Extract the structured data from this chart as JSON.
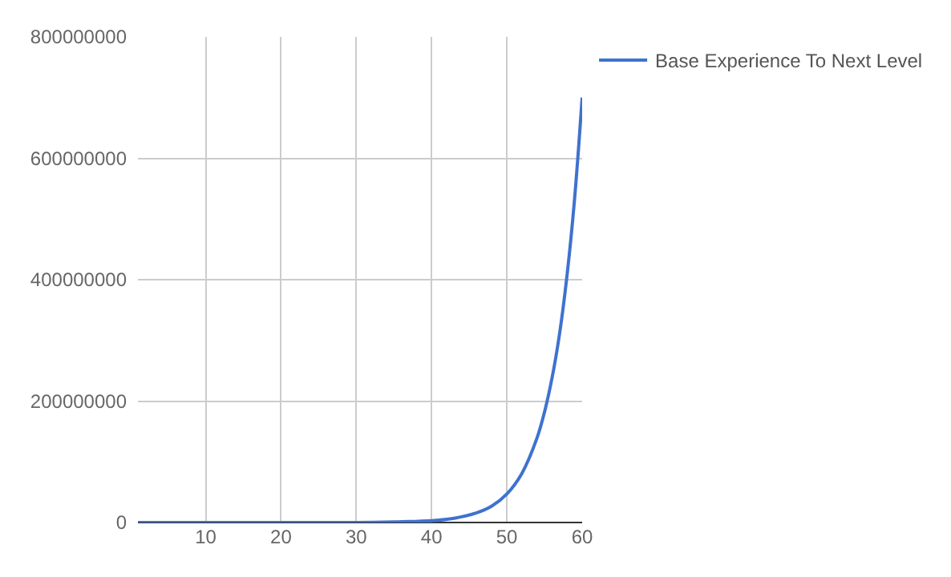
{
  "chart_data": {
    "type": "line",
    "x": [
      1,
      10,
      20,
      30,
      35,
      40,
      43,
      46,
      48,
      50,
      52,
      54,
      55,
      56,
      57,
      58,
      59,
      60
    ],
    "series": [
      {
        "name": "Base Experience To Next Level",
        "color": "#3f72cf",
        "values": [
          0,
          0,
          0,
          0,
          1000000,
          3000000,
          7000000,
          16000000,
          27000000,
          47000000,
          81000000,
          139000000,
          182000000,
          238000000,
          311000000,
          408000000,
          534000000,
          700000000
        ]
      }
    ],
    "xlim": [
      1,
      60
    ],
    "xticks": [
      10,
      20,
      30,
      40,
      50,
      60
    ],
    "ylim": [
      0,
      800000000
    ],
    "yticks": [
      0,
      200000000,
      400000000,
      600000000,
      800000000
    ],
    "grid": true,
    "legend": "top right",
    "marker": "none",
    "line_style": "solid"
  }
}
